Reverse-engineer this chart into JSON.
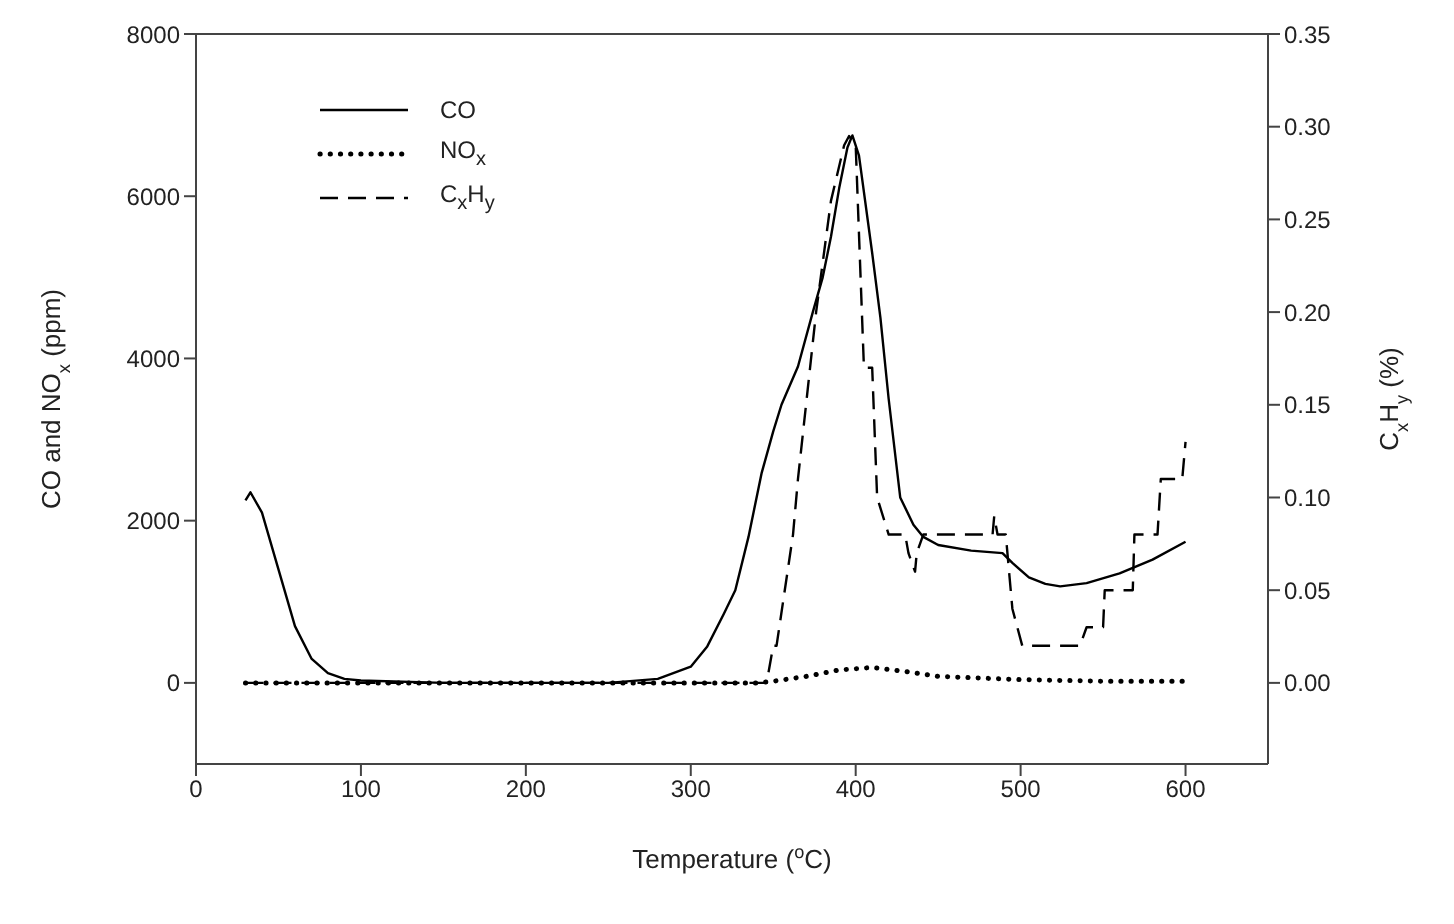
{
  "chart_data": {
    "type": "line",
    "xlabel": "Temperature ($^{o}$C)",
    "ylabel": "CO and NO$_{x}$ (ppm)",
    "y2label": "C$_{x}$H$_{y}$ (%)",
    "xlim": [
      0,
      650
    ],
    "xticks": [
      0,
      100,
      200,
      300,
      400,
      500,
      600
    ],
    "ylim": [
      -1000,
      8000
    ],
    "yticks": [
      0,
      2000,
      4000,
      6000,
      8000
    ],
    "y2lim": [
      -0.04375,
      0.35
    ],
    "y2ticks": [
      {
        "value": 0,
        "label": "0.00"
      },
      {
        "value": 0.05,
        "label": "0.05"
      },
      {
        "value": 0.1,
        "label": "0.10"
      },
      {
        "value": 0.15,
        "label": "0.15"
      },
      {
        "value": 0.2,
        "label": "0.20"
      },
      {
        "value": 0.25,
        "label": "0.25"
      },
      {
        "value": 0.3,
        "label": "0.30"
      },
      {
        "value": 0.35,
        "label": "0.35"
      }
    ],
    "legend": "top left",
    "series": [
      {
        "name": "CO",
        "color": "#000000",
        "line_style": "solid",
        "x": [
          30,
          33,
          40,
          50,
          60,
          70,
          80,
          90,
          100,
          150,
          200,
          250,
          280,
          300,
          310,
          320,
          327,
          335,
          343,
          350,
          355,
          365,
          374,
          380,
          385,
          390,
          395,
          398,
          402,
          410,
          415,
          420,
          427,
          435,
          441,
          450,
          470,
          489,
          495,
          505,
          515,
          524,
          540,
          560,
          580,
          600
        ],
        "values": [
          2250,
          2350,
          2100,
          1400,
          700,
          300,
          120,
          50,
          30,
          0,
          0,
          0,
          50,
          200,
          450,
          850,
          1143,
          1800,
          2590,
          3100,
          3429,
          3900,
          4571,
          5000,
          5500,
          6100,
          6600,
          6750,
          6500,
          5300,
          4500,
          3500,
          2286,
          1950,
          1800,
          1700,
          1630,
          1600,
          1480,
          1300,
          1220,
          1190,
          1230,
          1350,
          1520,
          1740
        ]
      },
      {
        "name": "NO$_{x}$",
        "color": "#000000",
        "line_style": "dotted",
        "x": [
          30,
          100,
          200,
          300,
          340,
          350,
          370,
          390,
          410,
          430,
          450,
          500,
          550,
          600
        ],
        "values": [
          0,
          0,
          0,
          0,
          0,
          20,
          80,
          160,
          190,
          140,
          80,
          40,
          20,
          20
        ]
      },
      {
        "name": "C$_{x}$H$_{y}$",
        "color": "#000000",
        "line_style": "dashed",
        "axis": "y2",
        "x": [
          30,
          346,
          350,
          352,
          362,
          365,
          376,
          385,
          393,
          396,
          400,
          405,
          408,
          410,
          413,
          420,
          424,
          430,
          432,
          436,
          437,
          441,
          483,
          484,
          486,
          491,
          495,
          501,
          536,
          540,
          550,
          551,
          568,
          569,
          583,
          585,
          598,
          600
        ],
        "values": [
          0,
          0,
          0.02,
          0.02,
          0.08,
          0.11,
          0.2,
          0.26,
          0.29,
          0.295,
          0.29,
          0.17,
          0.17,
          0.17,
          0.1,
          0.08,
          0.08,
          0.08,
          0.07,
          0.06,
          0.07,
          0.08,
          0.08,
          0.09,
          0.08,
          0.08,
          0.04,
          0.02,
          0.02,
          0.03,
          0.03,
          0.05,
          0.05,
          0.08,
          0.08,
          0.11,
          0.11,
          0.13
        ]
      }
    ]
  }
}
